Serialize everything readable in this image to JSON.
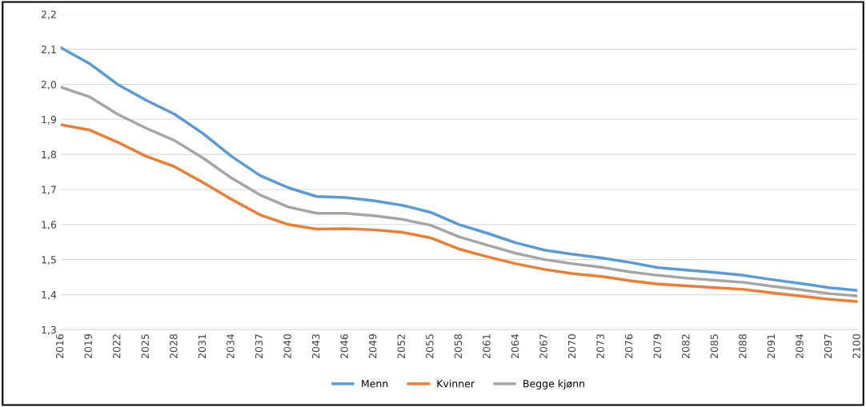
{
  "chart_data": {
    "type": "line",
    "x": [
      2016,
      2019,
      2022,
      2025,
      2028,
      2031,
      2034,
      2037,
      2040,
      2043,
      2046,
      2049,
      2052,
      2055,
      2058,
      2061,
      2064,
      2067,
      2070,
      2073,
      2076,
      2079,
      2082,
      2085,
      2088,
      2091,
      2094,
      2097,
      2100
    ],
    "series": [
      {
        "name": "Menn",
        "color": "#5b9bd5",
        "values": [
          2.105,
          2.06,
          2.0,
          1.955,
          1.915,
          1.86,
          1.795,
          1.74,
          1.705,
          1.68,
          1.677,
          1.668,
          1.655,
          1.635,
          1.6,
          1.575,
          1.548,
          1.527,
          1.515,
          1.505,
          1.492,
          1.477,
          1.47,
          1.463,
          1.455,
          1.443,
          1.432,
          1.42,
          1.412
        ]
      },
      {
        "name": "Kvinner",
        "color": "#ed7d31",
        "values": [
          1.885,
          1.87,
          1.835,
          1.795,
          1.765,
          1.72,
          1.672,
          1.628,
          1.6,
          1.587,
          1.588,
          1.585,
          1.578,
          1.562,
          1.53,
          1.508,
          1.488,
          1.472,
          1.46,
          1.452,
          1.44,
          1.43,
          1.425,
          1.42,
          1.415,
          1.405,
          1.396,
          1.387,
          1.38
        ]
      },
      {
        "name": "Begge kjønn",
        "color": "#a5a5a5",
        "values": [
          1.992,
          1.965,
          1.915,
          1.875,
          1.84,
          1.79,
          1.733,
          1.685,
          1.65,
          1.632,
          1.632,
          1.625,
          1.615,
          1.598,
          1.565,
          1.541,
          1.518,
          1.5,
          1.488,
          1.478,
          1.465,
          1.455,
          1.447,
          1.441,
          1.435,
          1.424,
          1.414,
          1.403,
          1.396
        ]
      }
    ],
    "xlim": [
      2016,
      2100
    ],
    "xticks": [
      2016,
      2019,
      2022,
      2025,
      2028,
      2031,
      2034,
      2037,
      2040,
      2043,
      2046,
      2049,
      2052,
      2055,
      2058,
      2061,
      2064,
      2067,
      2070,
      2073,
      2076,
      2079,
      2082,
      2085,
      2088,
      2091,
      2094,
      2097,
      2100
    ],
    "ylim": [
      1.3,
      2.2
    ],
    "yticks": [
      {
        "value": 1.3,
        "label": "1,3"
      },
      {
        "value": 1.4,
        "label": "1,4"
      },
      {
        "value": 1.5,
        "label": "1,5"
      },
      {
        "value": 1.6,
        "label": "1,6"
      },
      {
        "value": 1.7,
        "label": "1,7"
      },
      {
        "value": 1.8,
        "label": "1,8"
      },
      {
        "value": 1.9,
        "label": "1,9"
      },
      {
        "value": 2.0,
        "label": "2,0"
      },
      {
        "value": 2.1,
        "label": "2,1"
      },
      {
        "value": 2.2,
        "label": "2,2"
      }
    ],
    "grid": "y",
    "legend": "bottom",
    "line_style": "solid",
    "marker": "none"
  }
}
